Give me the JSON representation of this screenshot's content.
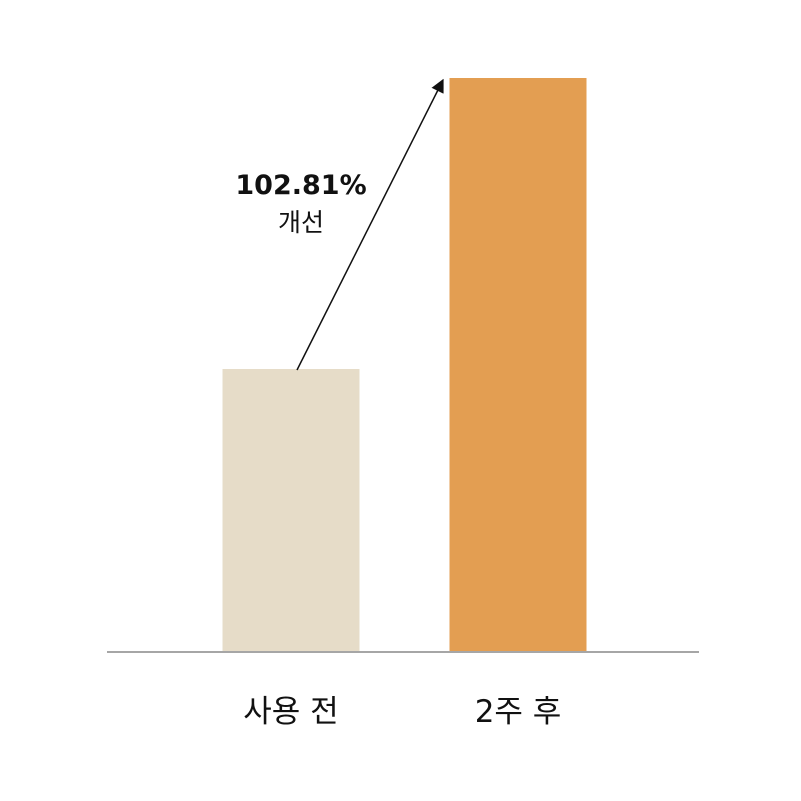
{
  "chart_data": {
    "type": "bar",
    "categories": [
      "사용 전",
      "2주 후"
    ],
    "values": [
      49.3,
      100
    ],
    "ylim": [
      0,
      100
    ],
    "grid": false,
    "legend": "none",
    "annotation": {
      "value": "102.81%",
      "text": "개선"
    },
    "colors": {
      "bars": [
        "#e6dcc8",
        "#e39e52"
      ],
      "baseline": "#a6a6a6",
      "text": "#111111"
    }
  }
}
